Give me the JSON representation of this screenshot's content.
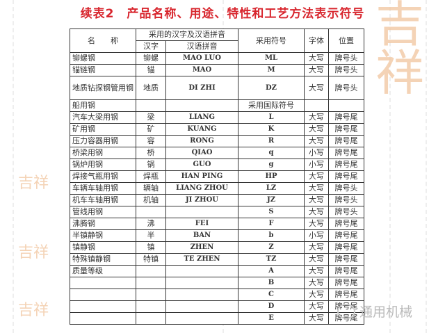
{
  "title": "续表2　产品名称、用途、特性和工艺方法表示符号",
  "header": {
    "name": "名　　称",
    "hanzi_pinyin_group": "采用的汉字及汉语拼音",
    "hanzi": "汉字",
    "pinyin": "汉语拼音",
    "symbol": "采用符号",
    "font": "字体",
    "position": "位置"
  },
  "rows": [
    {
      "name": "铆螺钢",
      "hanzi": "铆螺",
      "pinyin": "MAO LUO",
      "symbol": "ML",
      "font": "大写",
      "position": "牌号头"
    },
    {
      "name": "锚链钢",
      "hanzi": "锚",
      "pinyin": "MAO",
      "symbol": "M",
      "font": "大写",
      "position": "牌号头"
    },
    {
      "name": "地质钻探钢管用钢",
      "hanzi": "地质",
      "pinyin": "DI ZHI",
      "symbol": "DZ",
      "font": "大写",
      "position": "牌号头"
    },
    {
      "name": "船用钢",
      "hanzi": "",
      "pinyin": "",
      "symbol": "采用国际符号",
      "font": "",
      "position": ""
    },
    {
      "name": "汽车大梁用钢",
      "hanzi": "梁",
      "pinyin": "LIANG",
      "symbol": "L",
      "font": "大写",
      "position": "牌号尾"
    },
    {
      "name": "矿用钢",
      "hanzi": "矿",
      "pinyin": "KUANG",
      "symbol": "K",
      "font": "大写",
      "position": "牌号尾"
    },
    {
      "name": "压力容器用钢",
      "hanzi": "容",
      "pinyin": "RONG",
      "symbol": "R",
      "font": "大写",
      "position": "牌号尾"
    },
    {
      "name": "桥梁用钢",
      "hanzi": "桥",
      "pinyin": "QIAO",
      "symbol": "q",
      "font": "小写",
      "position": "牌号尾"
    },
    {
      "name": "锅炉用钢",
      "hanzi": "锅",
      "pinyin": "GUO",
      "symbol": "g",
      "font": "小写",
      "position": "牌号尾"
    },
    {
      "name": "焊接气瓶用钢",
      "hanzi": "焊瓶",
      "pinyin": "HAN PING",
      "symbol": "HP",
      "font": "大写",
      "position": "牌号尾"
    },
    {
      "name": "车辆车轴用钢",
      "hanzi": "辆轴",
      "pinyin": "LIANG ZHOU",
      "symbol": "LZ",
      "font": "大写",
      "position": "牌号头"
    },
    {
      "name": "机车车轴用钢",
      "hanzi": "机轴",
      "pinyin": "JI ZHOU",
      "symbol": "JZ",
      "font": "大写",
      "position": "牌号头"
    },
    {
      "name": "管线用钢",
      "hanzi": "",
      "pinyin": "",
      "symbol": "S",
      "font": "大写",
      "position": "牌号头"
    },
    {
      "name": "沸腾钢",
      "hanzi": "沸",
      "pinyin": "FEI",
      "symbol": "F",
      "font": "大写",
      "position": "牌号尾"
    },
    {
      "name": "半镇静钢",
      "hanzi": "半",
      "pinyin": "BAN",
      "symbol": "b",
      "font": "小写",
      "position": "牌号尾"
    },
    {
      "name": "镇静钢",
      "hanzi": "镇",
      "pinyin": "ZHEN",
      "symbol": "Z",
      "font": "大写",
      "position": "牌号尾"
    },
    {
      "name": "特殊镇静钢",
      "hanzi": "特镇",
      "pinyin": "TE ZHEN",
      "symbol": "TZ",
      "font": "大写",
      "position": "牌号尾"
    },
    {
      "name": "质量等级",
      "hanzi": "",
      "pinyin": "",
      "symbol": "A",
      "font": "大写",
      "position": "牌号尾"
    },
    {
      "name": "",
      "hanzi": "",
      "pinyin": "",
      "symbol": "B",
      "font": "大写",
      "position": "牌号尾"
    },
    {
      "name": "",
      "hanzi": "",
      "pinyin": "",
      "symbol": "C",
      "font": "大写",
      "position": "牌号尾"
    },
    {
      "name": "",
      "hanzi": "",
      "pinyin": "",
      "symbol": "D",
      "font": "大写",
      "position": "牌号尾"
    },
    {
      "name": "",
      "hanzi": "",
      "pinyin": "",
      "symbol": "E",
      "font": "大写",
      "position": "牌号尾"
    }
  ],
  "watermark": {
    "text": "通用机械",
    "icon": "wechat-icon"
  },
  "colors": {
    "title": "#d8262e",
    "stamp": "#f2c9a4"
  }
}
